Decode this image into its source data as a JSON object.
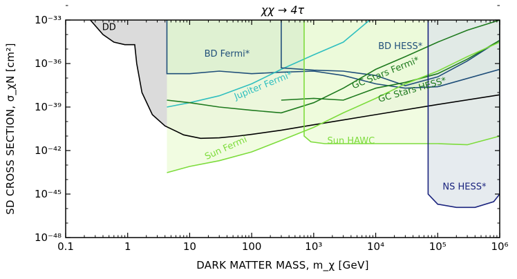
{
  "chart_data": {
    "type": "area",
    "title": "χχ → 4τ",
    "xlabel": "DARK MATTER MASS, m_χ [GeV]",
    "ylabel": "SD CROSS SECTION, σ_χN [cm²]",
    "xscale": "log",
    "yscale": "log",
    "xlim": [
      0.1,
      1000000
    ],
    "ylim": [
      1e-48,
      1e-33
    ],
    "grid": false,
    "x_ticks": [
      {
        "value": 0.1,
        "label": "0.1"
      },
      {
        "value": 1,
        "label": "1"
      },
      {
        "value": 10,
        "label": "10"
      },
      {
        "value": 100,
        "label": "100"
      },
      {
        "value": 1000,
        "label": "10³"
      },
      {
        "value": 10000,
        "label": "10⁴"
      },
      {
        "value": 100000,
        "label": "10⁵"
      },
      {
        "value": 1000000,
        "label": "10⁶"
      }
    ],
    "y_ticks": [
      {
        "value": 1e-48,
        "label": "10⁻⁴⁸"
      },
      {
        "value": 1e-45,
        "label": "10⁻⁴⁵"
      },
      {
        "value": 1e-42,
        "label": "10⁻⁴²"
      },
      {
        "value": 1e-39,
        "label": "10⁻³⁹"
      },
      {
        "value": 1e-36,
        "label": "10⁻³⁶"
      },
      {
        "value": 1e-33,
        "label": "10⁻³³"
      }
    ],
    "series": [
      {
        "name": "DD",
        "label": "DD",
        "color": "#000000",
        "fill": "#d9d9d9",
        "label_at": {
          "x": 0.5,
          "y": 2e-34
        },
        "points": [
          [
            0.25,
            1e-33
          ],
          [
            0.4,
            1e-34
          ],
          [
            0.6,
            3e-35
          ],
          [
            0.9,
            2e-35
          ],
          [
            1.3,
            2e-35
          ],
          [
            1.4,
            1e-36
          ],
          [
            1.7,
            1e-38
          ],
          [
            2.5,
            3e-40
          ],
          [
            4,
            5e-41
          ],
          [
            8,
            1.2e-41
          ],
          [
            15,
            7e-42
          ],
          [
            30,
            7.5e-42
          ],
          [
            60,
            1e-41
          ],
          [
            100,
            1.3e-41
          ],
          [
            300,
            2.5e-41
          ],
          [
            1000,
            6e-41
          ],
          [
            10000,
            3e-40
          ],
          [
            100000,
            1.5e-39
          ],
          [
            1000000,
            7e-39
          ]
        ]
      },
      {
        "name": "BD Fermi*",
        "label": "BD Fermi*",
        "color": "#1f4e79",
        "fill": "#4a9b6e",
        "label_at": {
          "x": 40,
          "y": 3e-36
        },
        "x_min": 4.3,
        "points": [
          [
            4.3,
            1e-33
          ],
          [
            4.3,
            2e-37
          ],
          [
            10,
            2e-37
          ],
          [
            30,
            3e-37
          ],
          [
            100,
            2e-37
          ],
          [
            300,
            2.5e-37
          ],
          [
            1000,
            3e-37
          ],
          [
            3000,
            1.5e-37
          ],
          [
            10000,
            4e-38
          ],
          [
            30000,
            2e-38
          ],
          [
            100000,
            2.5e-38
          ],
          [
            1000000,
            4e-37
          ],
          [
            1000000,
            1e-33
          ]
        ]
      },
      {
        "name": "Jupiter Fermi*",
        "label": "Jupiter Fermi*",
        "color": "#2fbfbf",
        "fill": "none",
        "label_at": {
          "x": 160,
          "y": 2e-38
        },
        "label_rotate": -22,
        "points": [
          [
            4.3,
            1e-39
          ],
          [
            10,
            2e-39
          ],
          [
            30,
            6e-39
          ],
          [
            100,
            4e-38
          ],
          [
            300,
            4e-37
          ],
          [
            1000,
            4e-36
          ],
          [
            3000,
            3e-35
          ],
          [
            8000,
            1e-33
          ]
        ]
      },
      {
        "name": "BD HESS*",
        "label": "BD HESS*",
        "color": "#1f4e79",
        "fill": "#7fb08a",
        "label_at": {
          "x": 25000,
          "y": 1e-35
        },
        "x_min": 300,
        "points": [
          [
            300,
            1e-33
          ],
          [
            300,
            5e-37
          ],
          [
            1000,
            3.5e-37
          ],
          [
            3000,
            3e-37
          ],
          [
            10000,
            1.5e-37
          ],
          [
            30000,
            3e-38
          ],
          [
            100000,
            1.2e-37
          ],
          [
            300000,
            1.5e-36
          ],
          [
            1000000,
            4e-35
          ],
          [
            1000000,
            1e-33
          ]
        ]
      },
      {
        "name": "GC Stars Fermi*",
        "label": "GC Stars Fermi*",
        "color": "#1e7a1e",
        "fill": "none",
        "label_at": {
          "x": 15000,
          "y": 1.5e-37
        },
        "label_rotate": -22,
        "points": [
          [
            4.3,
            3e-39
          ],
          [
            10,
            2e-39
          ],
          [
            30,
            1e-39
          ],
          [
            100,
            6e-40
          ],
          [
            300,
            4e-40
          ],
          [
            1000,
            2e-39
          ],
          [
            3000,
            2e-38
          ],
          [
            10000,
            4e-37
          ],
          [
            30000,
            3e-36
          ],
          [
            100000,
            3e-35
          ],
          [
            300000,
            2e-34
          ],
          [
            1000000,
            1e-33
          ]
        ]
      },
      {
        "name": "GC Stars HESS*",
        "label": "GC Stars HESS*",
        "color": "#1e7a1e",
        "fill": "none",
        "label_at": {
          "x": 40000,
          "y": 1e-38
        },
        "label_rotate": -16,
        "points": [
          [
            300,
            3e-39
          ],
          [
            1000,
            4e-39
          ],
          [
            3000,
            3e-39
          ],
          [
            10000,
            2e-38
          ],
          [
            30000,
            5e-38
          ],
          [
            100000,
            2e-37
          ],
          [
            300000,
            2e-36
          ],
          [
            1000000,
            4e-35
          ]
        ]
      },
      {
        "name": "Sun Fermi",
        "label": "Sun Fermi",
        "color": "#7ddc3c",
        "fill": "#eefbdc",
        "label_at": {
          "x": 40,
          "y": 1e-42
        },
        "label_rotate": -24,
        "x_min": 4.3,
        "points": [
          [
            4.3,
            3e-44
          ],
          [
            10,
            8e-44
          ],
          [
            30,
            2e-43
          ],
          [
            100,
            8e-43
          ],
          [
            300,
            5e-42
          ],
          [
            1000,
            4e-41
          ],
          [
            3000,
            4e-40
          ],
          [
            10000,
            4e-39
          ],
          [
            30000,
            4e-38
          ],
          [
            100000,
            3e-37
          ],
          [
            300000,
            3e-36
          ],
          [
            1000000,
            3e-35
          ]
        ]
      },
      {
        "name": "Sun HAWC",
        "label": "Sun HAWC",
        "color": "#7ddc3c",
        "fill": "#eefbdc",
        "label_at": {
          "x": 4000,
          "y": 3e-42
        },
        "x_min": 700,
        "points": [
          [
            700,
            1e-33
          ],
          [
            700,
            1e-41
          ],
          [
            900,
            4e-42
          ],
          [
            1500,
            3e-42
          ],
          [
            3000,
            3e-42
          ],
          [
            10000,
            3e-42
          ],
          [
            30000,
            3e-42
          ],
          [
            100000,
            3e-42
          ],
          [
            300000,
            2.5e-42
          ],
          [
            1000000,
            1e-41
          ],
          [
            1000000,
            1e-33
          ]
        ]
      },
      {
        "name": "NS HESS*",
        "label": "NS HESS*",
        "color": "#1a237e",
        "fill": "#dde4ea",
        "label_at": {
          "x": 270000,
          "y": 2e-45
        },
        "x_min": 70000,
        "points": [
          [
            70000,
            1e-33
          ],
          [
            70000,
            1e-45
          ],
          [
            100000,
            2e-46
          ],
          [
            200000,
            1.2e-46
          ],
          [
            400000,
            1.2e-46
          ],
          [
            800000,
            3e-46
          ],
          [
            1000000,
            1e-45
          ],
          [
            1000000,
            1e-33
          ]
        ]
      }
    ]
  }
}
